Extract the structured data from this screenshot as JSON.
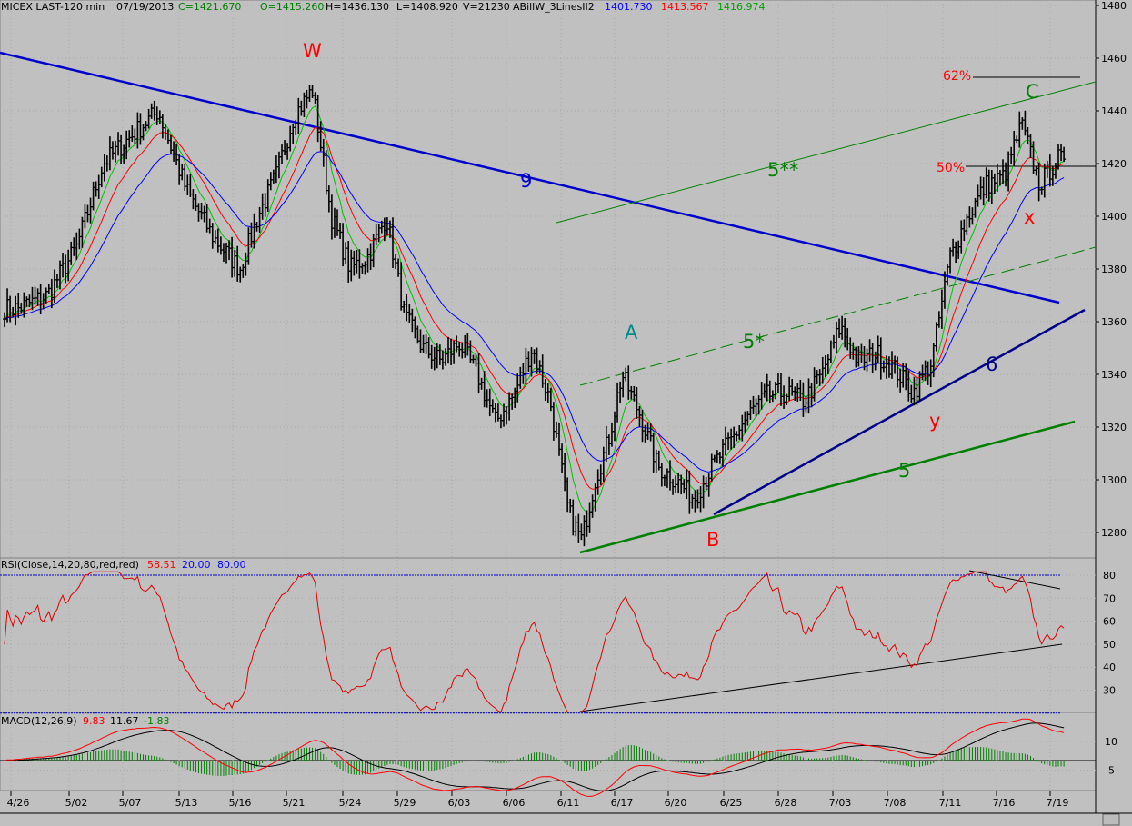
{
  "header": {
    "symbol": "MICEX LAST-120 min",
    "date": "07/19/2013",
    "close": "C=1421.670",
    "open": "O=1415.260",
    "high": "H=1436.130",
    "low": "L=1408.920",
    "volume": "V=21230",
    "indicator": "ABillW_3LinesII2",
    "ma_blue": "1401.730",
    "ma_red": "1413.567",
    "ma_green": "1416.974"
  },
  "rsi_header": {
    "label": "RSI(Close,14,20,80,red,red)",
    "value": "58.51",
    "low": "20.00",
    "high": "80.00"
  },
  "macd_header": {
    "label": "MACD(12,26,9)",
    "macd": "9.83",
    "signal": "11.67",
    "hist": "-1.83"
  },
  "colors": {
    "background": "#c0c0c0",
    "price_bar": "#000000",
    "ma_green": "#00c000",
    "ma_red": "#ff0000",
    "ma_blue": "#0000ff",
    "trend_blue": "#0000cc",
    "trend_navy": "#000080",
    "trend_green": "#008000",
    "wave_red": "#ff0000",
    "wave_green": "#008000",
    "wave_teal": "#008080",
    "wave_navy": "#000080",
    "rsi": "#e00000",
    "macd": "#000000",
    "signal": "#ff0000"
  },
  "wave_labels": [
    {
      "text": "W",
      "color": "#ff0000"
    },
    {
      "text": "A",
      "color": "#008b8b"
    },
    {
      "text": "B",
      "color": "#ff0000"
    },
    {
      "text": "C",
      "color": "#008000"
    },
    {
      "text": "x",
      "color": "#ff0000"
    },
    {
      "text": "y",
      "color": "#ff0000"
    },
    {
      "text": "9",
      "color": "#0000cc"
    },
    {
      "text": "6",
      "color": "#000080"
    },
    {
      "text": "5",
      "color": "#008000"
    },
    {
      "text": "5*",
      "color": "#008000"
    },
    {
      "text": "5**",
      "color": "#008000"
    },
    {
      "text": "62%",
      "color": "#ff0000"
    },
    {
      "text": "50%",
      "color": "#ff0000"
    }
  ],
  "chart_data": {
    "type": "candlestick",
    "title": "MICEX LAST-120 min",
    "price_axis": {
      "ticks": [
        1280,
        1300,
        1320,
        1340,
        1360,
        1380,
        1400,
        1420,
        1440,
        1460,
        1480
      ],
      "range": [
        1265,
        1485
      ]
    },
    "rsi_axis": {
      "ticks": [
        30,
        40,
        50,
        60,
        70,
        80
      ],
      "range": [
        17,
        83
      ],
      "levels": [
        20,
        80
      ]
    },
    "macd_axis": {
      "ticks": [
        10,
        -5
      ],
      "range": [
        -12,
        18
      ]
    },
    "x_ticks": [
      "4/26",
      "5/02",
      "5/07",
      "5/13",
      "5/16",
      "5/21",
      "5/24",
      "5/29",
      "6/03",
      "6/06",
      "6/11",
      "6/17",
      "6/20",
      "6/25",
      "6/28",
      "7/03",
      "7/08",
      "7/11",
      "7/16",
      "7/19"
    ],
    "price_anchors": [
      [
        "4/26",
        1365
      ],
      [
        "4/29",
        1370
      ],
      [
        "5/02",
        1388
      ],
      [
        "5/06",
        1420
      ],
      [
        "5/07",
        1430
      ],
      [
        "5/08",
        1440
      ],
      [
        "5/13",
        1410
      ],
      [
        "5/15",
        1392
      ],
      [
        "5/16",
        1380
      ],
      [
        "5/17",
        1400
      ],
      [
        "5/20",
        1415
      ],
      [
        "5/21",
        1438
      ],
      [
        "5/22",
        1448
      ],
      [
        "5/23",
        1400
      ],
      [
        "5/24",
        1380
      ],
      [
        "5/27",
        1385
      ],
      [
        "5/28",
        1400
      ],
      [
        "5/29",
        1362
      ],
      [
        "5/30",
        1350
      ],
      [
        "5/31",
        1345
      ],
      [
        "6/03",
        1352
      ],
      [
        "6/04",
        1340
      ],
      [
        "6/05",
        1322
      ],
      [
        "6/06",
        1332
      ],
      [
        "6/07",
        1350
      ],
      [
        "6/10",
        1330
      ],
      [
        "6/11",
        1288
      ],
      [
        "6/12",
        1277
      ],
      [
        "6/13",
        1300
      ],
      [
        "6/14",
        1315
      ],
      [
        "6/17",
        1340
      ],
      [
        "6/18",
        1325
      ],
      [
        "6/19",
        1305
      ],
      [
        "6/20",
        1300
      ],
      [
        "6/21",
        1293
      ],
      [
        "6/24",
        1305
      ],
      [
        "6/25",
        1315
      ],
      [
        "6/26",
        1325
      ],
      [
        "6/27",
        1332
      ],
      [
        "6/28",
        1333
      ],
      [
        "7/01",
        1330
      ],
      [
        "7/02",
        1340
      ],
      [
        "7/03",
        1358
      ],
      [
        "7/04",
        1345
      ],
      [
        "7/05",
        1348
      ],
      [
        "7/08",
        1342
      ],
      [
        "7/09",
        1333
      ],
      [
        "7/10",
        1345
      ],
      [
        "7/11",
        1385
      ],
      [
        "7/12",
        1400
      ],
      [
        "7/15",
        1412
      ],
      [
        "7/16",
        1415
      ],
      [
        "7/17",
        1435
      ],
      [
        "7/18",
        1412
      ],
      [
        "7/19",
        1421.67
      ]
    ],
    "levels": {
      "fib_62": 1453,
      "fib_50": 1419.5
    },
    "wave_points": {
      "W": 1452,
      "A": 1341,
      "B": 1278,
      "C": 1438,
      "x": 1414,
      "y": 1330
    }
  }
}
